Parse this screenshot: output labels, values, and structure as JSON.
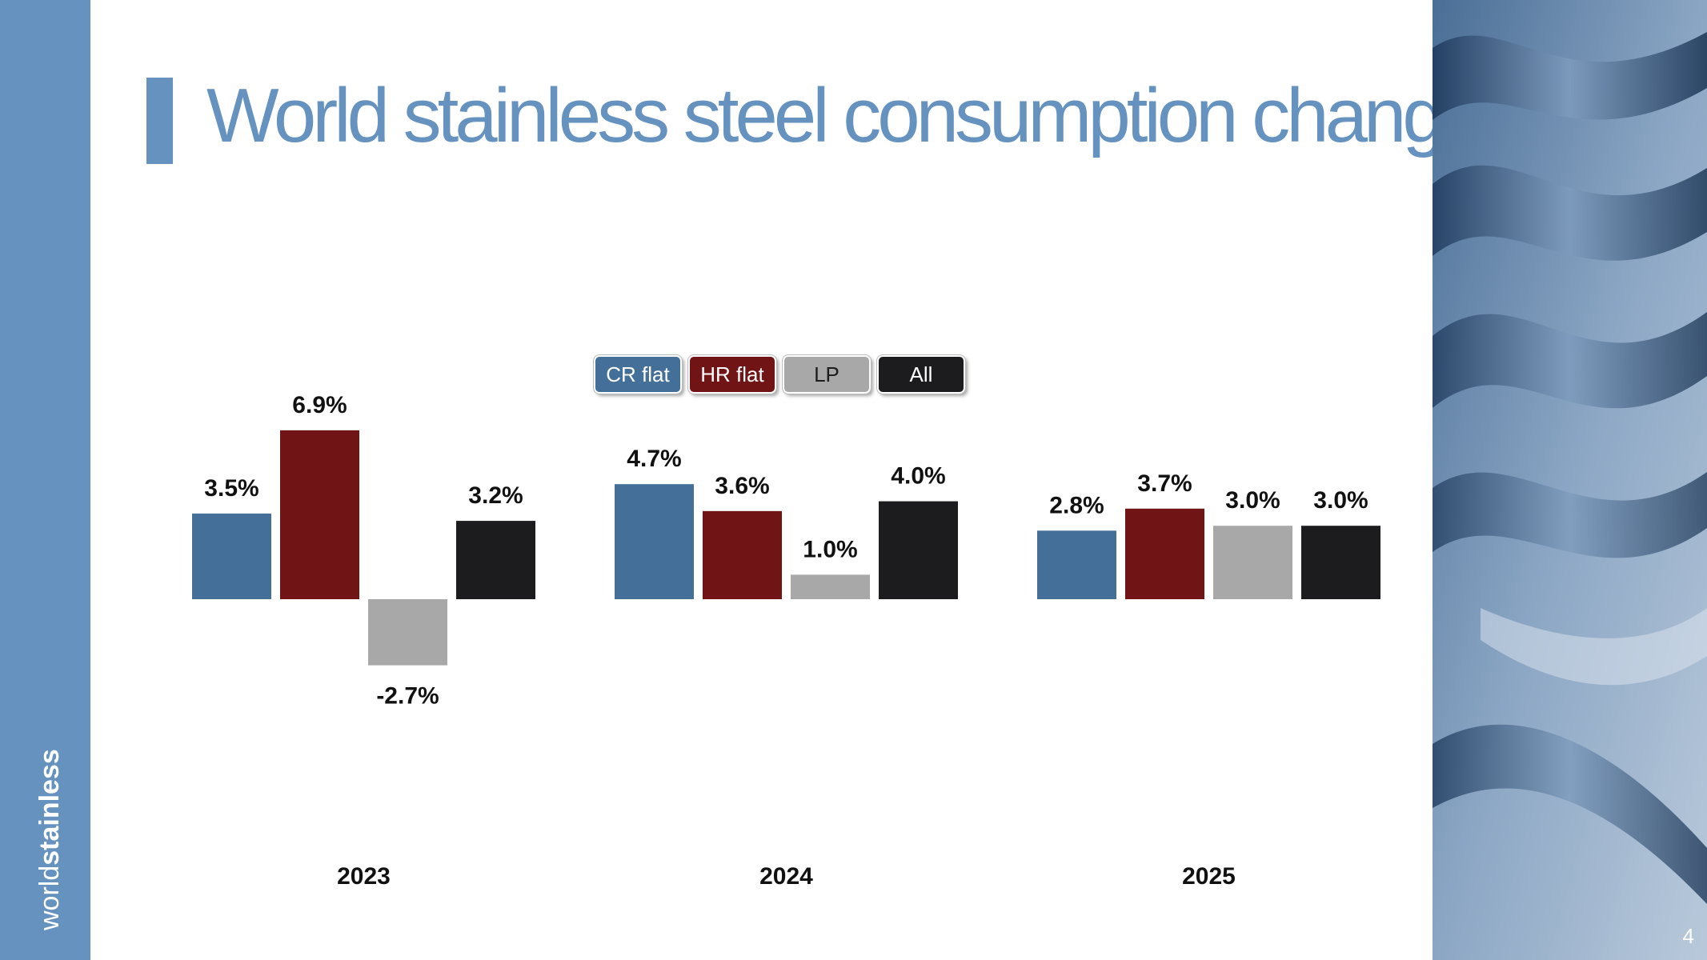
{
  "title": "World stainless steel consumption changes",
  "brand": {
    "light": "world",
    "bold": "stainless"
  },
  "page_number": "4",
  "colors": {
    "brand_blue": "#6592bf",
    "cr_flat": "#436f98",
    "hr_flat": "#701416",
    "lp": "#a8a8a8",
    "all": "#1c1b1d"
  },
  "legend": [
    {
      "label": "CR flat",
      "color": "#436f98",
      "text_color": "#ffffff"
    },
    {
      "label": "HR flat",
      "color": "#701416",
      "text_color": "#ffffff"
    },
    {
      "label": "LP",
      "color": "#a8a8a8",
      "text_color": "#1c1b1d"
    },
    {
      "label": "All",
      "color": "#1c1b1d",
      "text_color": "#ffffff"
    }
  ],
  "chart_data": {
    "type": "bar",
    "title": "",
    "xlabel": "",
    "ylabel": "",
    "categories": [
      "2023",
      "2024",
      "2025"
    ],
    "series": [
      {
        "name": "CR flat",
        "values": [
          3.5,
          4.7,
          2.8
        ],
        "labels": [
          "3.5%",
          "4.7%",
          "2.8%"
        ],
        "color": "#436f98"
      },
      {
        "name": "HR flat",
        "values": [
          6.9,
          3.6,
          3.7
        ],
        "labels": [
          "6.9%",
          "3.6%",
          "3.7%"
        ],
        "color": "#701416"
      },
      {
        "name": "LP",
        "values": [
          -2.7,
          1.0,
          3.0
        ],
        "labels": [
          "-2.7%",
          "1.0%",
          "3.0%"
        ],
        "color": "#a8a8a8"
      },
      {
        "name": "All",
        "values": [
          3.2,
          4.0,
          3.0
        ],
        "labels": [
          "3.2%",
          "4.0%",
          "3.0%"
        ],
        "color": "#1c1b1d"
      }
    ],
    "ylim": [
      -2.7,
      6.9
    ],
    "grid": false,
    "legend_position": "top-center"
  }
}
